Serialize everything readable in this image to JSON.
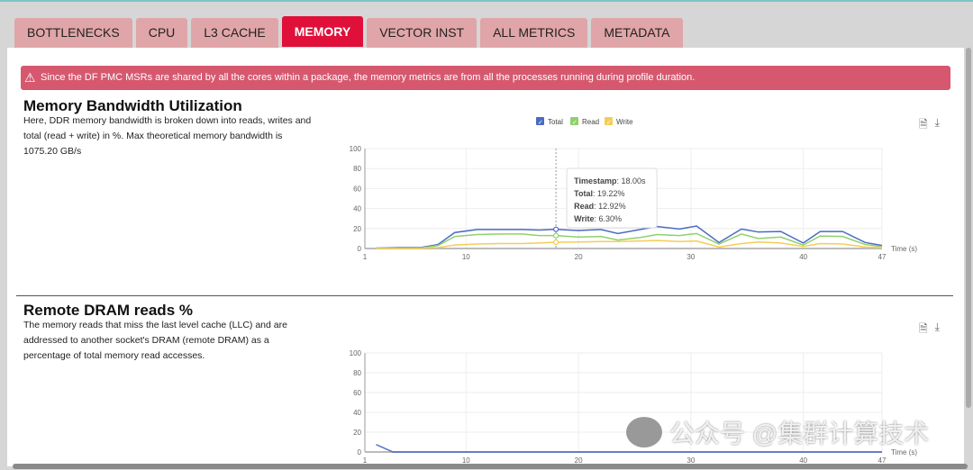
{
  "tabs": [
    "BOTTLENECKS",
    "CPU",
    "L3 CACHE",
    "MEMORY",
    "VECTOR INST",
    "ALL METRICS",
    "METADATA"
  ],
  "active_tab": "MEMORY",
  "alert": {
    "icon": "warning-icon",
    "text": "Since the DF PMC MSRs are shared by all the cores within a package, the memory metrics are from all the processes running during profile duration."
  },
  "sections": [
    {
      "title": "Memory Bandwidth Utilization",
      "description": "Here, DDR memory bandwidth is broken down into reads, writes and total (read + write) in %. Max theoretical memory bandwidth is 1075.20 GB/s"
    },
    {
      "title": "Remote DRAM reads %",
      "description": "The memory reads that miss the last level cache (LLC) and are addressed to another socket's DRAM (remote DRAM) as a percentage of total memory read accesses."
    }
  ],
  "watermark": "公众号 @集群计算技术",
  "chart_data": [
    {
      "type": "line",
      "xlabel": "Time (s)",
      "xlim": [
        1,
        47
      ],
      "ylim": [
        0,
        100
      ],
      "xticks": [
        1,
        10,
        20,
        30,
        40,
        47
      ],
      "yticks": [
        0,
        20,
        40,
        60,
        80,
        100
      ],
      "grid": true,
      "legend": "top-center",
      "x": [
        2,
        4,
        6,
        7.5,
        9,
        11,
        13,
        15,
        16.5,
        18,
        20,
        22,
        23.5,
        25.5,
        27,
        29,
        30.5,
        32.5,
        34.5,
        36,
        38,
        40,
        41.5,
        43.5,
        45.5,
        47
      ],
      "series": [
        {
          "name": "Total",
          "color": "#4a6bc3",
          "values": [
            0.5,
            1,
            1,
            4,
            16,
            19,
            19,
            19,
            18.5,
            19.22,
            18,
            19,
            15,
            19,
            22,
            19.5,
            22.5,
            6,
            19.5,
            16.5,
            17,
            5.5,
            17,
            17,
            6,
            3
          ]
        },
        {
          "name": "Read",
          "color": "#8fd16b",
          "values": [
            0.3,
            0.5,
            0.5,
            3,
            12,
            14,
            14.5,
            14.5,
            13,
            12.92,
            11.5,
            12,
            8.5,
            11,
            14,
            13,
            15,
            4.5,
            14.5,
            10,
            11.5,
            3.5,
            12.5,
            12,
            4,
            2
          ]
        },
        {
          "name": "Write",
          "color": "#f5cd55",
          "values": [
            0.2,
            0.3,
            0.3,
            1,
            3.5,
            4.5,
            5,
            5,
            5.5,
            6.3,
            6.5,
            7,
            7,
            7.5,
            8,
            7,
            7.5,
            1.5,
            5,
            6.5,
            5.5,
            2,
            5,
            4.5,
            1.5,
            1
          ]
        }
      ],
      "tooltip": {
        "x": 18,
        "lines": [
          [
            "Timestamp",
            "18.00s"
          ],
          [
            "Total",
            "19.22%"
          ],
          [
            "Read",
            "12.92%"
          ],
          [
            "Write",
            "6.30%"
          ]
        ]
      }
    },
    {
      "type": "line",
      "xlabel": "Time (s)",
      "xlim": [
        1,
        47
      ],
      "ylim": [
        0,
        100
      ],
      "xticks": [
        1,
        10,
        20,
        30,
        40,
        47
      ],
      "yticks": [
        0,
        20,
        40,
        60,
        80,
        100
      ],
      "grid": true,
      "x": [
        2,
        3.5,
        6,
        10,
        15,
        20,
        25,
        30,
        35,
        40,
        45,
        47
      ],
      "series": [
        {
          "color": "#4a6bc3",
          "values": [
            7.5,
            0,
            0,
            0,
            0,
            0,
            0,
            0,
            0,
            0,
            0,
            0
          ]
        }
      ]
    }
  ]
}
